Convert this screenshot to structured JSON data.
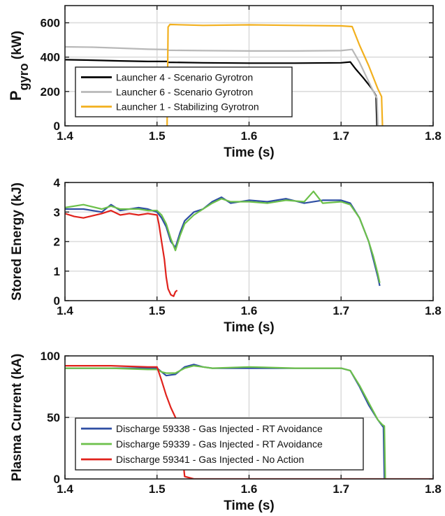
{
  "chart_data": [
    {
      "type": "line",
      "xlabel": "Time (s)",
      "ylabel": "P",
      "ylabel_sub": "gyro",
      "ylabel_unit": " (kW)",
      "xlim": [
        1.4,
        1.8
      ],
      "ylim": [
        0,
        700
      ],
      "xticks": [
        "1.4",
        "1.5",
        "1.6",
        "1.7",
        "1.8"
      ],
      "yticks": [
        "0",
        "200",
        "400",
        "600"
      ],
      "grid": true,
      "legend_position": "lower-left",
      "series": [
        {
          "name": "Launcher 4 - Scenario Gyrotron",
          "color": "#000000",
          "x": [
            1.4,
            1.43,
            1.46,
            1.49,
            1.511,
            1.512,
            1.55,
            1.6,
            1.65,
            1.7,
            1.71,
            1.716,
            1.724,
            1.733,
            1.738,
            1.739
          ],
          "y": [
            385,
            382,
            378,
            375,
            375,
            370,
            367,
            365,
            365,
            367,
            372,
            330,
            280,
            220,
            175,
            0
          ]
        },
        {
          "name": "Launcher 6 - Scenario Gyrotron",
          "color": "#b8b8b8",
          "x": [
            1.4,
            1.43,
            1.46,
            1.49,
            1.511,
            1.512,
            1.55,
            1.6,
            1.65,
            1.7,
            1.712,
            1.72,
            1.728,
            1.736,
            1.739,
            1.74
          ],
          "y": [
            460,
            458,
            452,
            446,
            444,
            440,
            438,
            436,
            436,
            438,
            445,
            370,
            280,
            190,
            160,
            0
          ]
        },
        {
          "name": "Launcher 1 - Stabilizing Gyrotron",
          "color": "#f2b01e",
          "x": [
            1.511,
            1.512,
            1.514,
            1.55,
            1.6,
            1.65,
            1.7,
            1.712,
            1.72,
            1.73,
            1.74,
            1.744,
            1.745
          ],
          "y": [
            0,
            575,
            590,
            585,
            588,
            585,
            582,
            578,
            470,
            350,
            215,
            170,
            0
          ]
        }
      ]
    },
    {
      "type": "line",
      "xlabel": "Time (s)",
      "ylabel": "Stored Energy (kJ)",
      "xlim": [
        1.4,
        1.8
      ],
      "ylim": [
        0,
        4
      ],
      "xticks": [
        "1.4",
        "1.5",
        "1.6",
        "1.7",
        "1.8"
      ],
      "yticks": [
        "0",
        "1",
        "2",
        "3",
        "4"
      ],
      "grid": true,
      "series": [
        {
          "color": "#2e4ea3",
          "x": [
            1.4,
            1.42,
            1.44,
            1.45,
            1.46,
            1.48,
            1.49,
            1.5,
            1.505,
            1.51,
            1.515,
            1.52,
            1.525,
            1.53,
            1.54,
            1.55,
            1.56,
            1.57,
            1.58,
            1.6,
            1.62,
            1.64,
            1.66,
            1.68,
            1.7,
            1.71,
            1.72,
            1.73,
            1.735,
            1.74,
            1.742
          ],
          "y": [
            3.1,
            3.1,
            3.0,
            3.25,
            3.05,
            3.15,
            3.1,
            3.0,
            2.8,
            2.5,
            2.0,
            1.8,
            2.3,
            2.7,
            3.0,
            3.1,
            3.35,
            3.5,
            3.3,
            3.4,
            3.35,
            3.45,
            3.3,
            3.4,
            3.4,
            3.3,
            2.8,
            2.0,
            1.4,
            0.8,
            0.5
          ]
        },
        {
          "color": "#6cc04a",
          "x": [
            1.4,
            1.42,
            1.44,
            1.45,
            1.46,
            1.48,
            1.49,
            1.5,
            1.505,
            1.51,
            1.515,
            1.52,
            1.525,
            1.53,
            1.54,
            1.55,
            1.56,
            1.57,
            1.58,
            1.6,
            1.62,
            1.64,
            1.66,
            1.67,
            1.68,
            1.7,
            1.71,
            1.72,
            1.73,
            1.735,
            1.74,
            1.742
          ],
          "y": [
            3.15,
            3.25,
            3.1,
            3.2,
            3.1,
            3.1,
            3.05,
            3.05,
            2.9,
            2.6,
            2.1,
            1.7,
            2.2,
            2.6,
            2.9,
            3.1,
            3.3,
            3.45,
            3.35,
            3.35,
            3.3,
            3.4,
            3.35,
            3.7,
            3.3,
            3.35,
            3.25,
            2.8,
            2.0,
            1.5,
            0.9,
            0.6
          ]
        },
        {
          "color": "#e0221c",
          "x": [
            1.4,
            1.41,
            1.42,
            1.44,
            1.45,
            1.46,
            1.47,
            1.48,
            1.49,
            1.5,
            1.502,
            1.505,
            1.508,
            1.51,
            1.512,
            1.515,
            1.518,
            1.52,
            1.522
          ],
          "y": [
            2.95,
            2.85,
            2.8,
            2.95,
            3.05,
            2.9,
            2.95,
            2.9,
            2.95,
            2.9,
            2.6,
            2.0,
            1.4,
            0.8,
            0.4,
            0.2,
            0.15,
            0.3,
            0.35
          ]
        }
      ]
    },
    {
      "type": "line",
      "xlabel": "Time (s)",
      "ylabel": "Plasma Current (kA)",
      "xlim": [
        1.4,
        1.8
      ],
      "ylim": [
        0,
        100
      ],
      "xticks": [
        "1.4",
        "1.5",
        "1.6",
        "1.7",
        "1.8"
      ],
      "yticks": [
        "0",
        "50",
        "100"
      ],
      "grid": true,
      "legend_position": "lower-left",
      "series": [
        {
          "name": "Discharge 59338 - Gas Injected - RT Avoidance",
          "color": "#2e4ea3",
          "x": [
            1.4,
            1.45,
            1.49,
            1.5,
            1.505,
            1.51,
            1.52,
            1.53,
            1.54,
            1.55,
            1.56,
            1.6,
            1.65,
            1.7,
            1.71,
            1.72,
            1.73,
            1.74,
            1.745,
            1.746,
            1.747
          ],
          "y": [
            90,
            90,
            90,
            90,
            87,
            84,
            85,
            91,
            93,
            91,
            90,
            90,
            90,
            90,
            88,
            75,
            60,
            48,
            43,
            42,
            0
          ]
        },
        {
          "name": "Discharge 59339 - Gas Injected - RT Avoidance",
          "color": "#6cc04a",
          "x": [
            1.4,
            1.45,
            1.49,
            1.5,
            1.505,
            1.51,
            1.52,
            1.53,
            1.54,
            1.55,
            1.56,
            1.6,
            1.65,
            1.7,
            1.71,
            1.72,
            1.73,
            1.74,
            1.745,
            1.747,
            1.748
          ],
          "y": [
            90,
            90,
            89,
            89,
            87,
            86,
            86,
            90,
            92,
            91,
            90,
            91,
            90,
            90,
            88,
            76,
            62,
            48,
            44,
            43,
            0
          ]
        },
        {
          "name": "Discharge 59341 - Gas Injected - No Action",
          "color": "#e0221c",
          "x": [
            1.4,
            1.45,
            1.49,
            1.5,
            1.505,
            1.51,
            1.515,
            1.52,
            1.525,
            1.53,
            1.54,
            1.6,
            1.7,
            1.8
          ],
          "y": [
            92,
            92,
            91,
            91,
            80,
            68,
            58,
            50,
            40,
            2,
            0,
            0,
            0,
            0
          ]
        }
      ]
    }
  ]
}
